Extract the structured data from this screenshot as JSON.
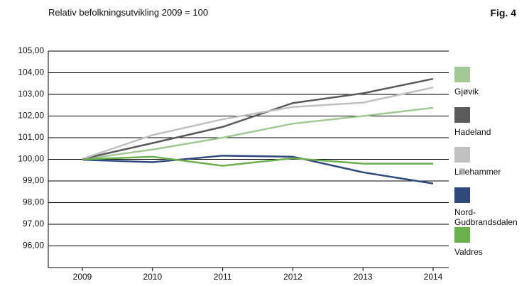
{
  "chart_data": {
    "type": "line",
    "title": "Relativ befolkningsutvikling 2009 = 100",
    "figure_label": "Fig. 4",
    "categories": [
      "2009",
      "2010",
      "2011",
      "2012",
      "2013",
      "2014"
    ],
    "ylim": [
      95,
      105
    ],
    "yticks": [
      {
        "value": 96,
        "label": "96,00"
      },
      {
        "value": 97,
        "label": "97,00"
      },
      {
        "value": 98,
        "label": "98,00"
      },
      {
        "value": 99,
        "label": "99,00"
      },
      {
        "value": 100,
        "label": "100,00"
      },
      {
        "value": 101,
        "label": "101,00"
      },
      {
        "value": 102,
        "label": "102,00"
      },
      {
        "value": 103,
        "label": "103,00"
      },
      {
        "value": 104,
        "label": "104,00"
      },
      {
        "value": 105,
        "label": "105,00"
      }
    ],
    "grid": true,
    "legend": "right",
    "series": [
      {
        "name": "Gjøvik",
        "color": "#a3c795",
        "values": [
          100.0,
          100.45,
          101.0,
          101.65,
          102.0,
          102.38
        ]
      },
      {
        "name": "Hadeland",
        "color": "#5a5a5a",
        "values": [
          100.02,
          100.75,
          101.5,
          102.6,
          103.05,
          103.72
        ]
      },
      {
        "name": "Lillehammer",
        "color": "#c0c0c0",
        "values": [
          100.02,
          101.12,
          101.85,
          102.42,
          102.62,
          103.32
        ]
      },
      {
        "name": "Nord-Gudbrandsdalen",
        "color": "#2e4a7d",
        "values": [
          99.98,
          99.87,
          100.17,
          100.12,
          99.4,
          98.88
        ]
      },
      {
        "name": "Valdres",
        "color": "#6ab04c",
        "values": [
          100.0,
          100.12,
          99.7,
          100.05,
          99.8,
          99.8
        ]
      }
    ]
  }
}
